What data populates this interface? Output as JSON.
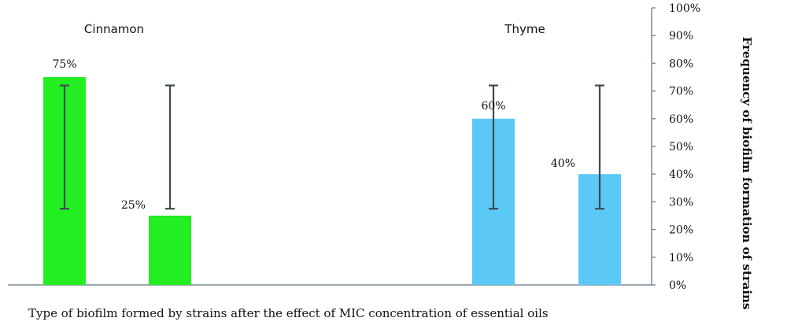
{
  "chart_data": {
    "type": "bar",
    "title": "",
    "xlabel": "Type of biofilm formed by strains after the effect of MIC concentration of essential oils",
    "ylabel": "Frequency of biofilm formation of strains",
    "ylim": [
      0,
      100
    ],
    "y_ticks": [
      "0%",
      "10%",
      "20%",
      "30%",
      "40%",
      "50%",
      "60%",
      "70%",
      "80%",
      "90%",
      "100%"
    ],
    "y_axis_position": "right",
    "grid": false,
    "legend": "none",
    "groups": [
      {
        "label": "Cinnamon",
        "color": "#22ee22",
        "bars": [
          {
            "value": 75,
            "label": "75%",
            "error_low": 27.5,
            "error_high": 72
          },
          {
            "value": 25,
            "label": "25%",
            "error_low": 27.5,
            "error_high": 72
          }
        ]
      },
      {
        "label": "Thyme",
        "color": "#5bc8f5",
        "bars": [
          {
            "value": 60,
            "label": "60%",
            "error_low": 27.5,
            "error_high": 72
          },
          {
            "value": 40,
            "label": "40%",
            "error_low": 27.5,
            "error_high": 72
          }
        ]
      }
    ]
  }
}
